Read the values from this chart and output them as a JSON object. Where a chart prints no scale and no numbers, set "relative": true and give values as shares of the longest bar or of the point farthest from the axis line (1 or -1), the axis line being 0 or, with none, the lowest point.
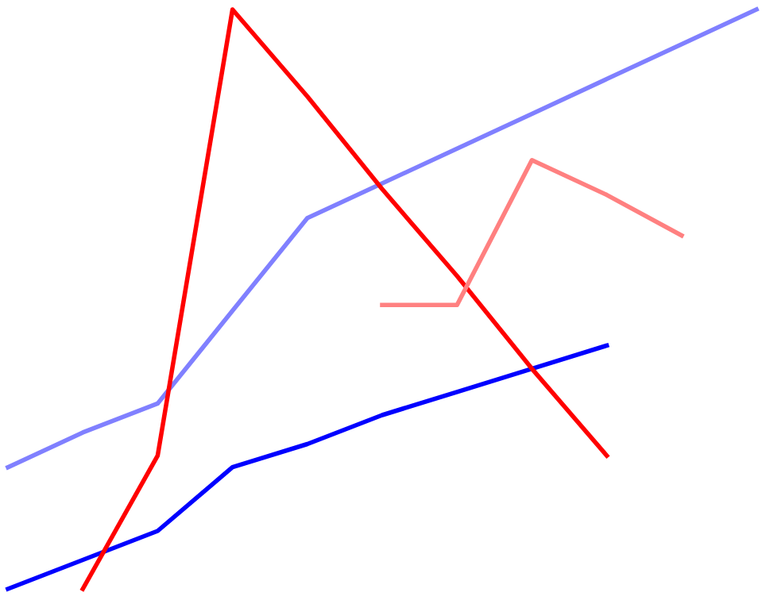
{
  "chart_data": {
    "type": "line",
    "relative": true,
    "categories": [
      null,
      null,
      null,
      null,
      null,
      null,
      null,
      null,
      null,
      null,
      null
    ],
    "series": [
      {
        "color": "#0000ff",
        "values": [
          0,
          0.05,
          0.1,
          0.21,
          0.25,
          0.3,
          0.34,
          0.38,
          0.42,
          null,
          null
        ]
      },
      {
        "color": "#8080ff",
        "values": [
          0.21,
          0.27,
          0.32,
          0.48,
          0.64,
          0.7,
          0.76,
          0.82,
          0.88,
          0.94,
          1.0
        ]
      },
      {
        "color": "#ff0000",
        "values": [
          null,
          0,
          0.23,
          1.0,
          0.85,
          0.69,
          0.54,
          0.38,
          0.23,
          null,
          null
        ]
      },
      {
        "color": "#ff8080",
        "values": [
          null,
          null,
          null,
          null,
          null,
          0.49,
          0.49,
          0.74,
          0.68,
          0.61,
          null
        ]
      }
    ]
  }
}
